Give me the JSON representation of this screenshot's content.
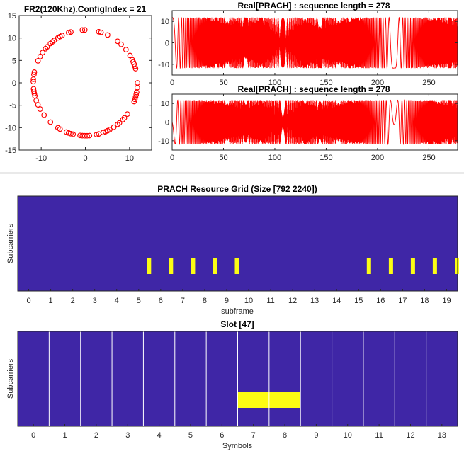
{
  "chart_data": [
    {
      "type": "scatter",
      "title": "FR2(120Khz),ConfigIndex = 21",
      "xlabel": "",
      "ylabel": "",
      "xlim": [
        -15,
        15
      ],
      "ylim": [
        -15,
        15
      ],
      "xticks": [
        -10,
        0,
        10
      ],
      "yticks": [
        15,
        10,
        5,
        0,
        -5,
        -10,
        -15
      ],
      "marker": "circle-open",
      "series": [
        {
          "points": "139 constellation points lying on a circle of radius ~11.8",
          "radius": 11.8,
          "count": 139
        }
      ],
      "color": "#ff0000"
    },
    {
      "type": "line",
      "title": "Real[PRACH] : sequence length = 278",
      "xlim": [
        0,
        278
      ],
      "ylim": [
        -15,
        15
      ],
      "xticks": [
        0,
        50,
        100,
        150,
        200,
        250
      ],
      "yticks": [
        10,
        0,
        -10
      ],
      "amplitude": 11.8,
      "color": "#ff0000"
    },
    {
      "type": "line",
      "title": "Real[PRACH] : sequence length = 278",
      "xlim": [
        0,
        278
      ],
      "ylim": [
        -15,
        15
      ],
      "xticks": [
        0,
        50,
        100,
        150,
        200,
        250
      ],
      "yticks": [
        10,
        0,
        -10
      ],
      "amplitude": 11.8,
      "color": "#ff0000"
    },
    {
      "type": "heatmap",
      "title": "PRACH Resource Grid (Size [792 2240])",
      "xlabel": "subframe",
      "ylabel": "Subcarriers",
      "xticks": [
        "0",
        "1",
        "2",
        "3",
        "4",
        "5",
        "6",
        "7",
        "8",
        "9",
        "10",
        "11",
        "12",
        "13",
        "14",
        "15",
        "16",
        "17",
        "18",
        "19"
      ],
      "xlim": [
        -0.5,
        19.5
      ],
      "active_subframes": [
        5.5,
        6.5,
        7.5,
        8.5,
        9.5,
        15.5,
        16.5,
        17.5,
        18.5,
        19.5
      ],
      "background": "#3f26a6",
      "active_color": "#fcfc14"
    },
    {
      "type": "heatmap",
      "title": "Slot [47]",
      "xlabel": "Symbols",
      "ylabel": "Subcarriers",
      "xticks": [
        "0",
        "1",
        "2",
        "3",
        "4",
        "5",
        "6",
        "7",
        "8",
        "9",
        "10",
        "11",
        "12",
        "13"
      ],
      "xlim": [
        -0.5,
        13.5
      ],
      "active_symbols": [
        7,
        8
      ],
      "background": "#3f26a6",
      "active_color": "#fcfc14",
      "grid_color": "#ffffff"
    }
  ]
}
